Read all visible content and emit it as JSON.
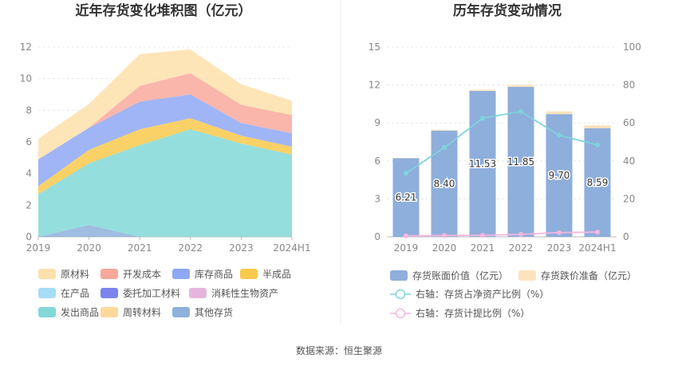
{
  "source_label": "数据来源：恒生聚源",
  "chart_data": [
    {
      "type": "area",
      "stacked": true,
      "title": "近年存货变化堆积图（亿元）",
      "categories": [
        "2019",
        "2020",
        "2021",
        "2022",
        "2023",
        "2024H1"
      ],
      "yticks": [
        "0",
        "2",
        "4",
        "6",
        "8",
        "10",
        "12"
      ],
      "ylim": [
        0,
        12
      ],
      "grid": true,
      "legend_position": "bottom",
      "series": [
        {
          "name": "其他存货",
          "color": "#8eb0dc",
          "values": [
            0.0,
            0.75,
            0.0,
            0.0,
            0.0,
            0.0
          ]
        },
        {
          "name": "发出商品",
          "color": "#83d8d8",
          "values": [
            2.7,
            3.9,
            5.8,
            6.8,
            5.9,
            5.2
          ]
        },
        {
          "name": "在产品",
          "color": "#a6dcf6",
          "values": [
            0.0,
            0.0,
            0.0,
            0.0,
            0.0,
            0.0
          ]
        },
        {
          "name": "委托加工材料",
          "color": "#7b84ee",
          "values": [
            0.0,
            0.0,
            0.0,
            0.0,
            0.0,
            0.0
          ]
        },
        {
          "name": "消耗性生物资产",
          "color": "#e6b5dd",
          "values": [
            0.0,
            0.0,
            0.0,
            0.0,
            0.0,
            0.0
          ]
        },
        {
          "name": "半成品",
          "color": "#f8c94c",
          "values": [
            0.5,
            0.85,
            1.0,
            0.7,
            0.5,
            0.5
          ]
        },
        {
          "name": "库存商品",
          "color": "#8fa8f4",
          "values": [
            1.7,
            1.4,
            1.75,
            1.5,
            0.8,
            0.85
          ]
        },
        {
          "name": "开发成本",
          "color": "#f9a99c",
          "values": [
            0.0,
            0.0,
            1.0,
            1.35,
            1.15,
            1.15
          ]
        },
        {
          "name": "周转材料",
          "color": "#fcd89a",
          "values": [
            0.0,
            0.0,
            0.0,
            0.0,
            0.0,
            0.0
          ]
        },
        {
          "name": "原材料",
          "color": "#fde0ac",
          "values": [
            1.3,
            1.5,
            2.0,
            1.5,
            1.3,
            0.9
          ]
        }
      ],
      "legend_order": [
        "原材料",
        "开发成本",
        "库存商品",
        "半成品",
        "在产品",
        "委托加工材料",
        "消耗性生物资产",
        "发出商品",
        "周转材料",
        "其他存货"
      ]
    },
    {
      "type": "bar+line",
      "title": "历年存货变动情况",
      "categories": [
        "2019",
        "2020",
        "2021",
        "2022",
        "2023",
        "2024H1"
      ],
      "left_yticks": [
        "0",
        "3",
        "6",
        "9",
        "12",
        "15"
      ],
      "right_yticks": [
        "0",
        "20",
        "40",
        "60",
        "80",
        "100"
      ],
      "ylim_left": [
        0,
        15
      ],
      "ylim_right": [
        0,
        100
      ],
      "bars": [
        {
          "name": "存货账面价值（亿元）",
          "color": "#8eaedc",
          "values": [
            6.21,
            8.4,
            11.53,
            11.85,
            9.7,
            8.59
          ],
          "labels": [
            "6.21",
            "8.40",
            "11.53",
            "11.85",
            "9.70",
            "8.59"
          ]
        },
        {
          "name": "存货跌价准备（亿元）",
          "color": "#fde3bd",
          "values": [
            0.03,
            0.06,
            0.1,
            0.15,
            0.22,
            0.22
          ]
        }
      ],
      "lines": [
        {
          "name": "右轴：存货占净资产比例（%）",
          "color": "#7fd3dc",
          "axis": "right",
          "values": [
            33.5,
            47.0,
            62.5,
            66.0,
            53.5,
            48.5
          ]
        },
        {
          "name": "右轴：存货计提比例（%）",
          "color": "#f4b6de",
          "axis": "right",
          "values": [
            0.5,
            0.7,
            0.8,
            1.3,
            2.2,
            2.5
          ]
        }
      ]
    }
  ]
}
